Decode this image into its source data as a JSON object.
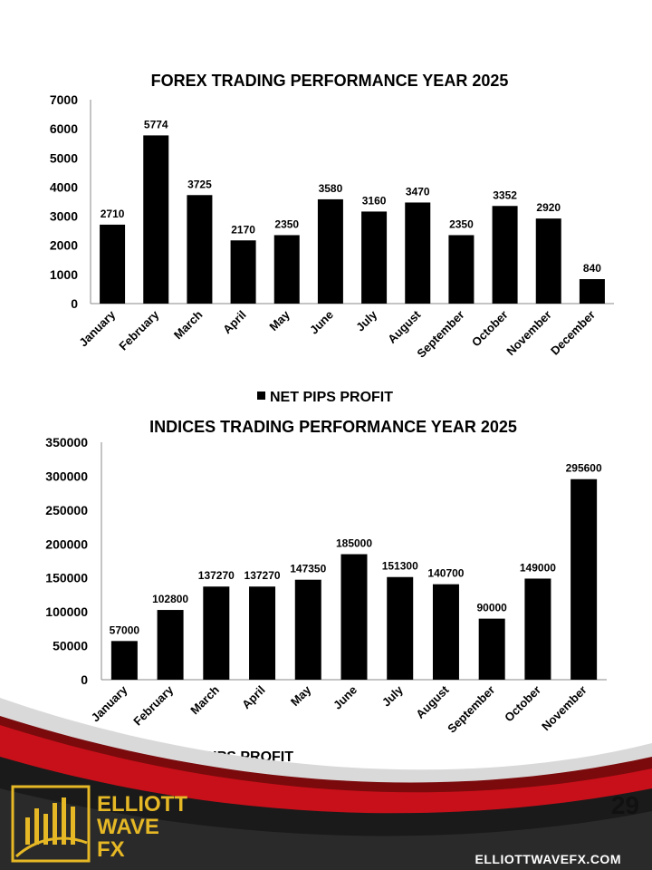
{
  "chart_data": [
    {
      "type": "bar",
      "title": "FOREX TRADING PERFORMANCE YEAR 2025",
      "categories": [
        "January",
        "February",
        "March",
        "April",
        "May",
        "June",
        "July",
        "August",
        "September",
        "October",
        "November",
        "December"
      ],
      "series": [
        {
          "name": "NET PIPS PROFIT",
          "values": [
            2710,
            5774,
            3725,
            2170,
            2350,
            3580,
            3160,
            3470,
            2350,
            3352,
            2920,
            840
          ]
        }
      ],
      "ylim": [
        0,
        7000
      ],
      "yticks": [
        "0",
        "1000",
        "2000",
        "3000",
        "4000",
        "5000",
        "6000",
        "7000"
      ],
      "data_labels": true,
      "legend": "bottom",
      "grid": false
    },
    {
      "type": "bar",
      "title": "INDICES TRADING PERFORMANCE YEAR 2025",
      "categories": [
        "January",
        "February",
        "March",
        "April",
        "May",
        "June",
        "July",
        "August",
        "September",
        "October",
        "November"
      ],
      "series": [
        {
          "name": "NET PIPS PROFIT",
          "values": [
            57000,
            102800,
            137270,
            137270,
            147350,
            185000,
            151300,
            140700,
            90000,
            149000,
            295600
          ]
        }
      ],
      "ylim": [
        0,
        350000
      ],
      "yticks": [
        "0",
        "50000",
        "100000",
        "150000",
        "200000",
        "250000",
        "300000",
        "350000"
      ],
      "data_labels": true,
      "legend": "bottom-left",
      "grid": false
    }
  ],
  "footer": {
    "brand_line1": "ELLIOTT",
    "brand_line2": "WAVE",
    "brand_line3": "FX",
    "page_number": "29",
    "website": "ELLIOTTWAVEFX.COM"
  },
  "colors": {
    "bar": "#000000",
    "accent_red": "#c8101a",
    "dark_red": "#7a0a0c",
    "brand_gold": "#e6b825",
    "footer_dark": "#1a1a1a"
  },
  "icons": [
    "candlestick-logo-icon"
  ]
}
